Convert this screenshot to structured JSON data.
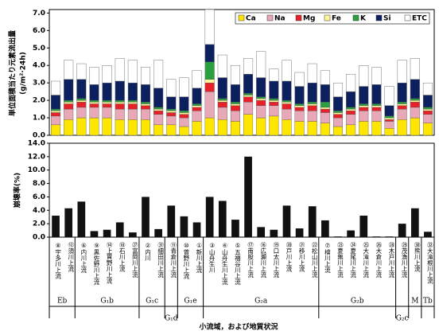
{
  "chart_data": [
    {
      "type": "stacked_bar",
      "y_label": "単位面積当たり元素流出量",
      "y_unit": "(g/m²·24h)",
      "ylim": [
        0,
        7.2
      ],
      "yticks": [
        {
          "value": 0,
          "label": "0.0"
        },
        {
          "value": 1,
          "label": "1.0"
        },
        {
          "value": 2,
          "label": "2.0"
        },
        {
          "value": 3,
          "label": "3.0"
        },
        {
          "value": 4,
          "label": "4.0"
        },
        {
          "value": 5,
          "label": "5.0"
        },
        {
          "value": 6,
          "label": "6.0"
        },
        {
          "value": 7,
          "label": "7.0"
        }
      ],
      "legend": "top-right",
      "series": [
        {
          "name": "Ca",
          "color": "#ffe600",
          "values": [
            0.6,
            0.9,
            1.0,
            1.0,
            1.0,
            0.9,
            0.9,
            0.9,
            0.6,
            0.6,
            0.5,
            0.8,
            1.0,
            0.9,
            0.8,
            1.2,
            1.0,
            1.1,
            0.9,
            0.8,
            0.8,
            0.7,
            0.5,
            0.6,
            0.8,
            0.8,
            0.4,
            0.9,
            1.0,
            0.7
          ]
        },
        {
          "name": "Na",
          "color": "#e8a8b8",
          "values": [
            0.5,
            0.6,
            0.6,
            0.6,
            0.6,
            0.6,
            0.6,
            0.6,
            0.6,
            0.5,
            0.5,
            0.6,
            1.5,
            0.7,
            0.6,
            0.7,
            0.7,
            0.6,
            0.6,
            0.6,
            0.6,
            0.6,
            0.5,
            0.6,
            0.6,
            0.6,
            0.4,
            0.6,
            0.6,
            0.5
          ]
        },
        {
          "name": "Mg",
          "color": "#e8202a",
          "values": [
            0.2,
            0.3,
            0.3,
            0.2,
            0.2,
            0.3,
            0.3,
            0.2,
            0.2,
            0.2,
            0.2,
            0.2,
            0.5,
            0.3,
            0.3,
            0.3,
            0.3,
            0.2,
            0.3,
            0.2,
            0.3,
            0.2,
            0.2,
            0.2,
            0.2,
            0.2,
            0.1,
            0.2,
            0.3,
            0.2
          ]
        },
        {
          "name": "Fe",
          "color": "#fff59a",
          "values": [
            0.1,
            0.1,
            0.1,
            0.1,
            0.1,
            0.1,
            0.1,
            0.1,
            0.1,
            0.1,
            0.1,
            0.1,
            0.2,
            0.1,
            0.1,
            0.1,
            0.1,
            0.1,
            0.1,
            0.1,
            0.1,
            0.1,
            0.1,
            0.1,
            0.1,
            0.1,
            0.1,
            0.1,
            0.1,
            0.1
          ]
        },
        {
          "name": "K",
          "color": "#2aa040",
          "values": [
            0.1,
            0.1,
            0.1,
            0.1,
            0.1,
            0.1,
            0.1,
            0.1,
            0.1,
            0.1,
            0.1,
            0.1,
            1.0,
            0.1,
            0.1,
            0.1,
            0.1,
            0.1,
            0.1,
            0.1,
            0.1,
            0.3,
            0.1,
            0.1,
            0.1,
            0.1,
            0.1,
            0.1,
            0.1,
            0.1
          ]
        },
        {
          "name": "Si",
          "color": "#0c2060",
          "values": [
            0.8,
            1.2,
            1.1,
            0.9,
            1.0,
            1.1,
            1.0,
            1.0,
            1.1,
            0.7,
            0.8,
            0.9,
            1.0,
            1.2,
            1.0,
            1.1,
            1.1,
            1.0,
            1.1,
            1.0,
            1.1,
            1.0,
            0.8,
            0.9,
            1.0,
            1.1,
            0.6,
            1.1,
            1.1,
            0.7
          ]
        },
        {
          "name": "ETC",
          "color": "#ffffff",
          "values": [
            0.8,
            1.1,
            0.9,
            1.0,
            1.0,
            1.3,
            1.3,
            1.0,
            1.6,
            1.0,
            1.1,
            1.0,
            2.0,
            1.3,
            1.1,
            0.9,
            1.5,
            0.7,
            1.2,
            0.8,
            1.1,
            0.8,
            0.8,
            1.0,
            1.2,
            1.0,
            1.1,
            1.3,
            1.2,
            0.7
          ]
        }
      ]
    },
    {
      "type": "bar",
      "y_label": "崩壊率(%)",
      "ylim": [
        0,
        14
      ],
      "color": "#111111",
      "yticks": [
        {
          "value": 0,
          "label": "0.0"
        },
        {
          "value": 2,
          "label": "2.0"
        },
        {
          "value": 4,
          "label": "4.0"
        },
        {
          "value": 6,
          "label": "6.0"
        },
        {
          "value": 8,
          "label": "8.0"
        },
        {
          "value": 10,
          "label": "10.0"
        },
        {
          "value": 12,
          "label": "12.0"
        },
        {
          "value": 14,
          "label": "14.0"
        }
      ],
      "values": [
        3.2,
        4.3,
        5.3,
        0.9,
        1.1,
        2.2,
        0.7,
        6.0,
        1.2,
        4.7,
        3.1,
        2.2,
        6.0,
        5.4,
        2.6,
        12.0,
        1.5,
        1.1,
        4.7,
        1.3,
        4.6,
        2.5,
        0.1,
        1.0,
        3.2,
        0.1,
        0.1,
        2.0,
        4.3,
        0.8
      ]
    },
    {
      "x_label": "小流域，および地質状況",
      "groups": [
        {
          "label": "Eb",
          "categories": [
            "⑧宇多川上流",
            "⑫須川上流"
          ]
        },
        {
          "label": "G₁b",
          "categories": [
            "⑥内川上流",
            "⑨黒佐野川上流",
            "⑭上貫野川上流",
            "⑱石川上流",
            "㉗富岡川上流"
          ]
        },
        {
          "label": "G₁c",
          "categories": [
            "②内川",
            "㉛細田川上流"
          ]
        },
        {
          "label": "G₁d",
          "categories": [
            "⑪青倉川上流"
          ]
        },
        {
          "label": "G₁e",
          "categories": [
            "⑩曾野川上流",
            "①新川上流"
          ]
        },
        {
          "label": "G₂a",
          "categories": [
            "③山舟生川",
            "④山舟生川上流",
            "⑤五福谷川上流",
            "⑰南股川上流",
            "⑯広瀬川上流",
            "⑲口太川上流",
            "⑳戸川上流",
            "㉑移川上流",
            "㉒松山川上流"
          ]
        },
        {
          "label": "G₂b",
          "categories": [
            "⑦檜川上流",
            "㉓夏無川上流",
            "㉔夏尾川上流",
            "㉕大滝川上流",
            "㉖大倉川上流",
            "㉘木戸川上流"
          ]
        },
        {
          "label": "G₂c",
          "categories": [
            "㉙茂漁川上流"
          ]
        },
        {
          "label": "M",
          "categories": [
            "㉚熊川上流"
          ]
        },
        {
          "label": "Tb",
          "categories": [
            "㉜大滝根川上流"
          ]
        }
      ]
    }
  ]
}
